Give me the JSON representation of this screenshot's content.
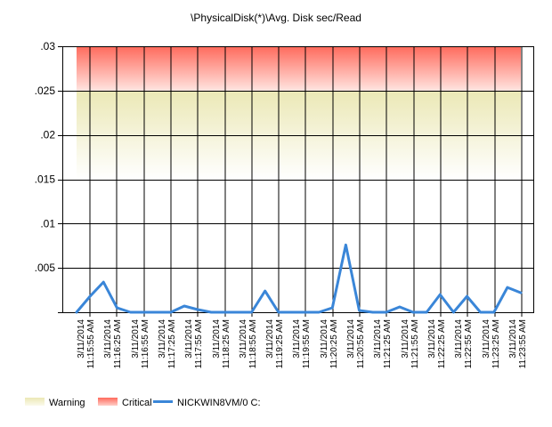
{
  "chart_data": {
    "type": "line",
    "title": "\\PhysicalDisk(*)\\Avg. Disk sec/Read",
    "xlabel": "",
    "ylabel": "",
    "ylim": [
      0,
      0.03
    ],
    "yticks": [
      0,
      0.005,
      0.01,
      0.015,
      0.02,
      0.025,
      0.03
    ],
    "ytick_labels": [
      "",
      ".005",
      ".01",
      ".015",
      ".02",
      ".025",
      ".03"
    ],
    "grid": true,
    "legend_position": "bottom-left",
    "x_ticks": [
      [
        "3/11/2014",
        "11:15:55 AM"
      ],
      [
        "3/11/2014",
        "11:16:25 AM"
      ],
      [
        "3/11/2014",
        "11:16:55 AM"
      ],
      [
        "3/11/2014",
        "11:17:25 AM"
      ],
      [
        "3/11/2014",
        "11:17:55 AM"
      ],
      [
        "3/11/2014",
        "11:18:25 AM"
      ],
      [
        "3/11/2014",
        "11:18:55 AM"
      ],
      [
        "3/11/2014",
        "11:19:25 AM"
      ],
      [
        "3/11/2014",
        "11:19:55 AM"
      ],
      [
        "3/11/2014",
        "11:20:25 AM"
      ],
      [
        "3/11/2014",
        "11:20:55 AM"
      ],
      [
        "3/11/2014",
        "11:21:25 AM"
      ],
      [
        "3/11/2014",
        "11:21:55 AM"
      ],
      [
        "3/11/2014",
        "11:22:25 AM"
      ],
      [
        "3/11/2014",
        "11:22:55 AM"
      ],
      [
        "3/11/2014",
        "11:23:25 AM"
      ],
      [
        "3/11/2014",
        "11:23:55 AM"
      ]
    ],
    "bands": [
      {
        "name": "Warning",
        "from": 0.015,
        "to": 0.025,
        "color_top": "#ece9b8",
        "color_bottom": "#ffffff"
      },
      {
        "name": "Critical",
        "from": 0.025,
        "to": 0.03,
        "color_top": "#ff6a5c",
        "color_bottom": "#ffe0dc"
      }
    ],
    "series": [
      {
        "name": "NICKWIN8VM/0 C:",
        "color": "#3a86d8",
        "values": [
          0.0,
          0.0018,
          0.0034,
          0.0005,
          0.0,
          0.0,
          0.0,
          0.0,
          0.0007,
          0.0003,
          0.0,
          0.0,
          0.0,
          0.0,
          0.0024,
          0.0,
          0.0,
          0.0,
          0.0,
          0.0005,
          0.0076,
          0.0002,
          0.0,
          0.0,
          0.0006,
          0.0,
          0.0,
          0.002,
          0.0,
          0.0018,
          0.0,
          0.0,
          0.0028,
          0.0022
        ]
      }
    ],
    "legend": [
      {
        "label": "Warning",
        "swatch": "warning"
      },
      {
        "label": "Critical",
        "swatch": "critical"
      },
      {
        "label": "NICKWIN8VM/0 C:",
        "swatch": "line"
      }
    ]
  }
}
